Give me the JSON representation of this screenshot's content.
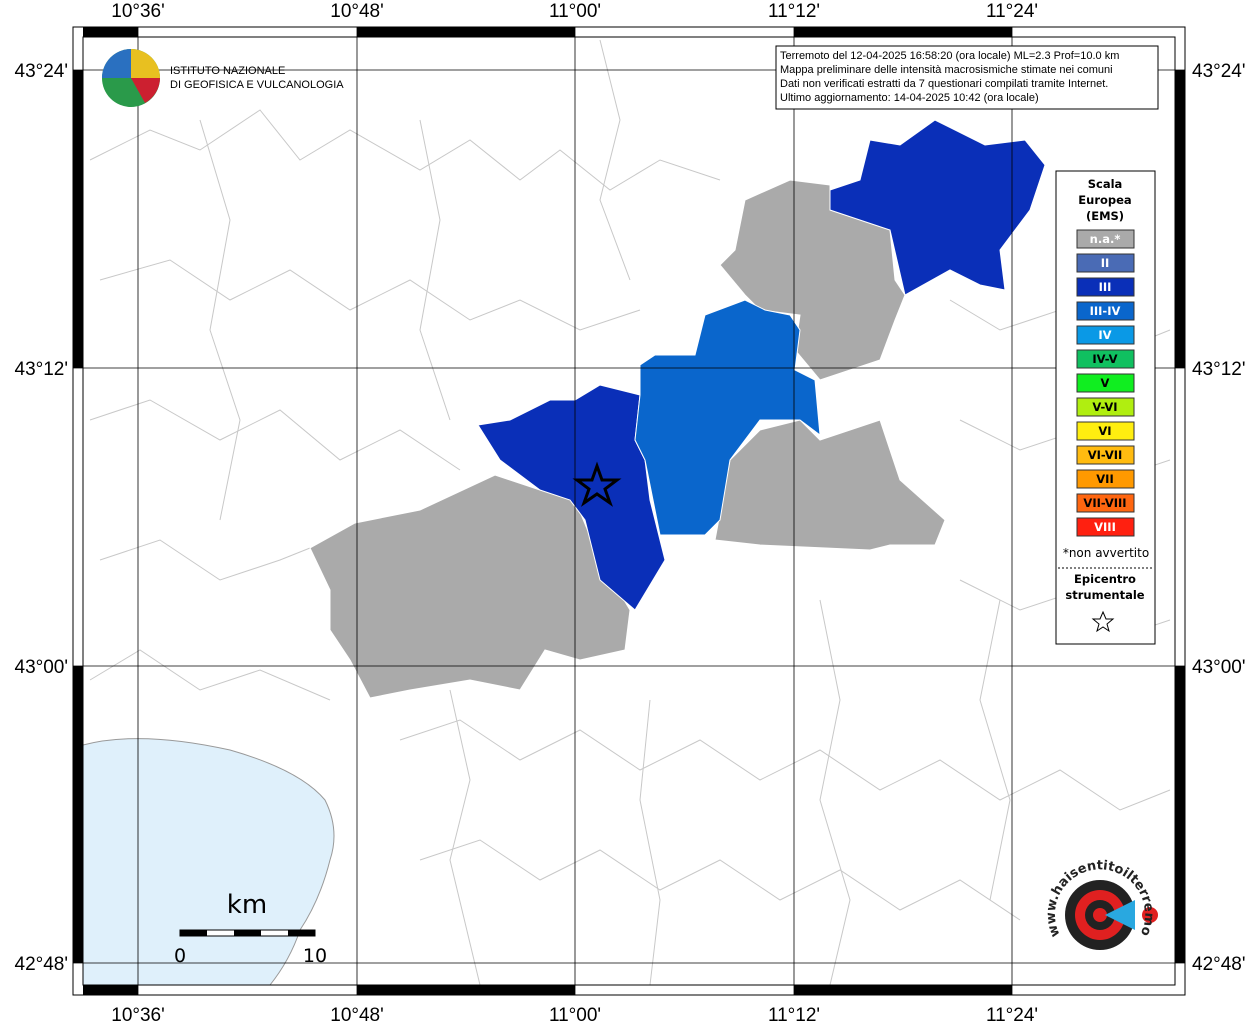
{
  "lon_labels": [
    "10°36'",
    "10°48'",
    "11°00'",
    "11°12'",
    "11°24'"
  ],
  "lat_labels": [
    "43°24'",
    "43°12'",
    "43°00'",
    "42°48'"
  ],
  "info": [
    "Terremoto del 12-04-2025 16:58:20 (ora locale) ML=2.3 Prof=10.0 km",
    "Mappa preliminare delle intensità macrosismiche stimate nei comuni",
    "Dati non verificati estratti da 7 questionari compilati tramite Internet.",
    "Ultimo aggiornamento: 14-04-2025 10:42 (ora locale)"
  ],
  "logo": [
    "ISTITUTO NAZIONALE",
    "DI GEOFISICA E VULCANOLOGIA"
  ],
  "legend": {
    "title": [
      "Scala",
      "Europea",
      "(EMS)"
    ],
    "items": [
      {
        "label": "n.a.*",
        "color": "#aaaaaa",
        "text_color": "#ffffff"
      },
      {
        "label": "II",
        "color": "#4a6bb5",
        "text_color": "#ffffff"
      },
      {
        "label": "III",
        "color": "#0a2fb8",
        "text_color": "#ffffff"
      },
      {
        "label": "III-IV",
        "color": "#0a66cc",
        "text_color": "#ffffff"
      },
      {
        "label": "IV",
        "color": "#0a99e6",
        "text_color": "#ffffff"
      },
      {
        "label": "IV-V",
        "color": "#10c060",
        "text_color": "#000000"
      },
      {
        "label": "V",
        "color": "#10ee20",
        "text_color": "#000000"
      },
      {
        "label": "V-VI",
        "color": "#b0ee10",
        "text_color": "#000000"
      },
      {
        "label": "VI",
        "color": "#ffee10",
        "text_color": "#000000"
      },
      {
        "label": "VI-VII",
        "color": "#ffbb10",
        "text_color": "#000000"
      },
      {
        "label": "VII",
        "color": "#ff9900",
        "text_color": "#000000"
      },
      {
        "label": "VII-VIII",
        "color": "#ff6610",
        "text_color": "#000000"
      },
      {
        "label": "VIII",
        "color": "#ff2010",
        "text_color": "#ffffff"
      }
    ],
    "note": "*non avvertito",
    "epicenter": [
      "Epicentro",
      "strumentale"
    ]
  },
  "scale": {
    "unit": "km",
    "labels": [
      "0",
      "10"
    ]
  },
  "badge": "www.haisentitoilterremoto.it"
}
